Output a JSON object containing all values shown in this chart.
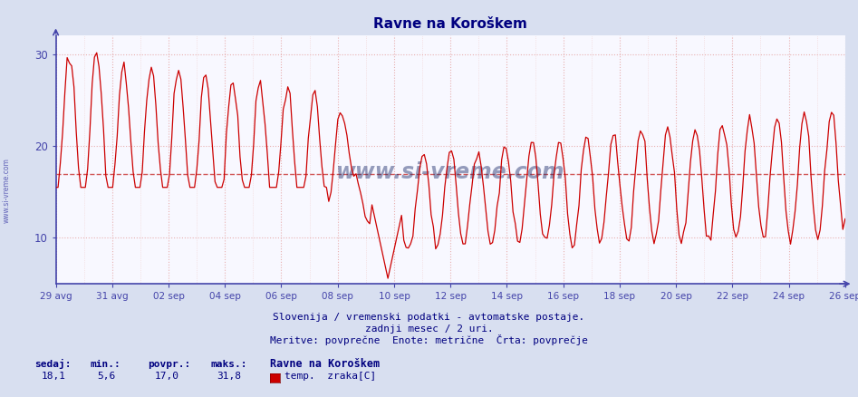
{
  "title": "Ravne na Koroškem",
  "background_color": "#d8dff0",
  "plot_bg_color": "#f8f8ff",
  "grid_color_major": "#e8b8b8",
  "grid_color_minor": "#f0d8d8",
  "line_color": "#cc0000",
  "avg_value": 17.0,
  "ylim": [
    5,
    32
  ],
  "yticks": [
    10,
    20,
    30
  ],
  "x_labels": [
    "29 avg",
    "31 avg",
    "02 sep",
    "04 sep",
    "06 sep",
    "08 sep",
    "10 sep",
    "12 sep",
    "14 sep",
    "16 sep",
    "18 sep",
    "20 sep",
    "22 sep",
    "24 sep",
    "26 sep"
  ],
  "footer_line1": "Slovenija / vremenski podatki - avtomatske postaje.",
  "footer_line2": "zadnji mesec / 2 uri.",
  "footer_line3": "Meritve: povprečne  Enote: metrične  Črta: povprečje",
  "stat_labels": [
    "sedaj:",
    "min.:",
    "povpr.:",
    "maks.:"
  ],
  "stat_values": [
    "18,1",
    "5,6",
    "17,0",
    "31,8"
  ],
  "legend_station": "Ravne na Koroškem",
  "legend_series": "temp.  zraka[C]",
  "legend_color": "#cc0000",
  "title_color": "#000080",
  "axis_color": "#4444aa",
  "text_color": "#000080",
  "watermark_text": "www.si-vreme.com",
  "n_points": 348
}
